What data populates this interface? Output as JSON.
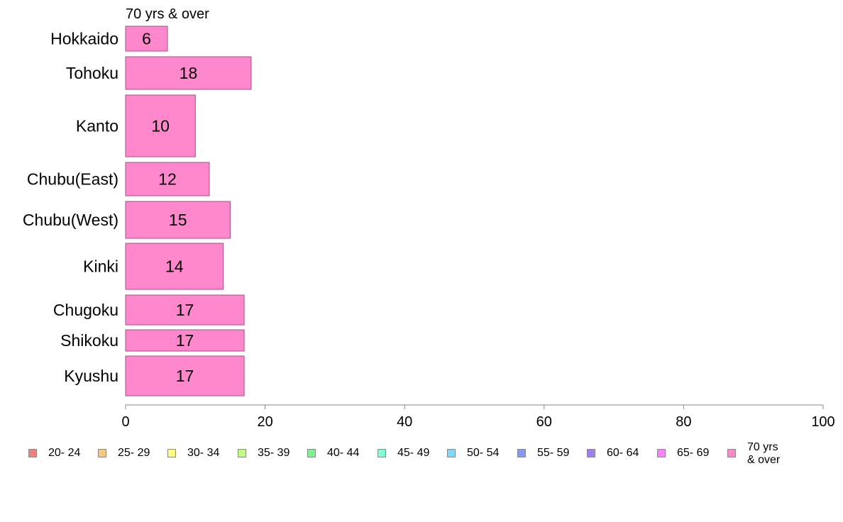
{
  "chart_data": {
    "type": "bar",
    "orientation": "horizontal",
    "title": "70 yrs & over",
    "categories": [
      "Hokkaido",
      "Tohoku",
      "Kanto",
      "Chubu(East)",
      "Chubu(West)",
      "Kinki",
      "Chugoku",
      "Shikoku",
      "Kyushu"
    ],
    "series": [
      {
        "name": "70 yrs & over",
        "values": [
          6,
          18,
          10,
          12,
          15,
          14,
          17,
          17,
          17
        ],
        "color": "#ff88cc"
      }
    ],
    "xlim": [
      0,
      100
    ],
    "x_ticks": [
      "0",
      "20",
      "40",
      "60",
      "80",
      "100"
    ],
    "grid": false,
    "legend_position": "bottom",
    "legend": [
      {
        "label": "20- 24",
        "color": "#f08080"
      },
      {
        "label": "25- 29",
        "color": "#f8c880"
      },
      {
        "label": "30- 34",
        "color": "#ffff80"
      },
      {
        "label": "35- 39",
        "color": "#c0ff80"
      },
      {
        "label": "40- 44",
        "color": "#80f090"
      },
      {
        "label": "45- 49",
        "color": "#80ffd8"
      },
      {
        "label": "50- 54",
        "color": "#80d8ff"
      },
      {
        "label": "55- 59",
        "color": "#8898f0"
      },
      {
        "label": "60- 64",
        "color": "#a080f0"
      },
      {
        "label": "65- 69",
        "color": "#ff80ff"
      },
      {
        "label": "70 yrs\n& over",
        "color": "#ff88cc"
      }
    ]
  }
}
